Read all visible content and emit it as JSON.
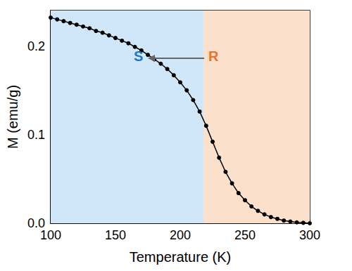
{
  "chart_data": {
    "type": "line",
    "x_label": "Temperature (K)",
    "y_label": "M (emu/g)",
    "x": [
      100,
      105,
      110,
      115,
      120,
      125,
      130,
      135,
      140,
      145,
      150,
      155,
      160,
      165,
      170,
      175,
      180,
      185,
      190,
      195,
      200,
      205,
      210,
      215,
      220,
      225,
      230,
      235,
      240,
      245,
      250,
      255,
      260,
      265,
      270,
      275,
      280,
      285,
      290,
      295,
      300
    ],
    "series": [
      {
        "name": "M",
        "color": "#000000",
        "marker": "circle",
        "line_style": "solid",
        "values": [
          0.232,
          0.23,
          0.228,
          0.226,
          0.224,
          0.222,
          0.22,
          0.217,
          0.215,
          0.212,
          0.209,
          0.206,
          0.203,
          0.199,
          0.195,
          0.19,
          0.185,
          0.18,
          0.174,
          0.167,
          0.159,
          0.15,
          0.139,
          0.126,
          0.11,
          0.092,
          0.074,
          0.058,
          0.045,
          0.034,
          0.026,
          0.019,
          0.014,
          0.01,
          0.007,
          0.005,
          0.003,
          0.002,
          0.001,
          0.0005,
          0.0
        ]
      }
    ],
    "xlim": [
      100,
      300
    ],
    "xticks": [
      100,
      150,
      200,
      250,
      300
    ],
    "ylim": [
      0,
      0.24
    ],
    "yticks": [
      {
        "value": 0,
        "label": "0.0"
      },
      {
        "value": 0.1,
        "label": "0.1"
      },
      {
        "value": 0.2,
        "label": "0.2"
      }
    ],
    "regions": [
      {
        "from": 100,
        "to": 218,
        "color": "#cfe7f8"
      },
      {
        "from": 218,
        "to": 300,
        "color": "#fbe0cc"
      }
    ],
    "annotations": [
      {
        "text": "S",
        "color": "#1f78c8"
      },
      {
        "text": "R",
        "color": "#e8742e"
      }
    ],
    "grid": false
  }
}
